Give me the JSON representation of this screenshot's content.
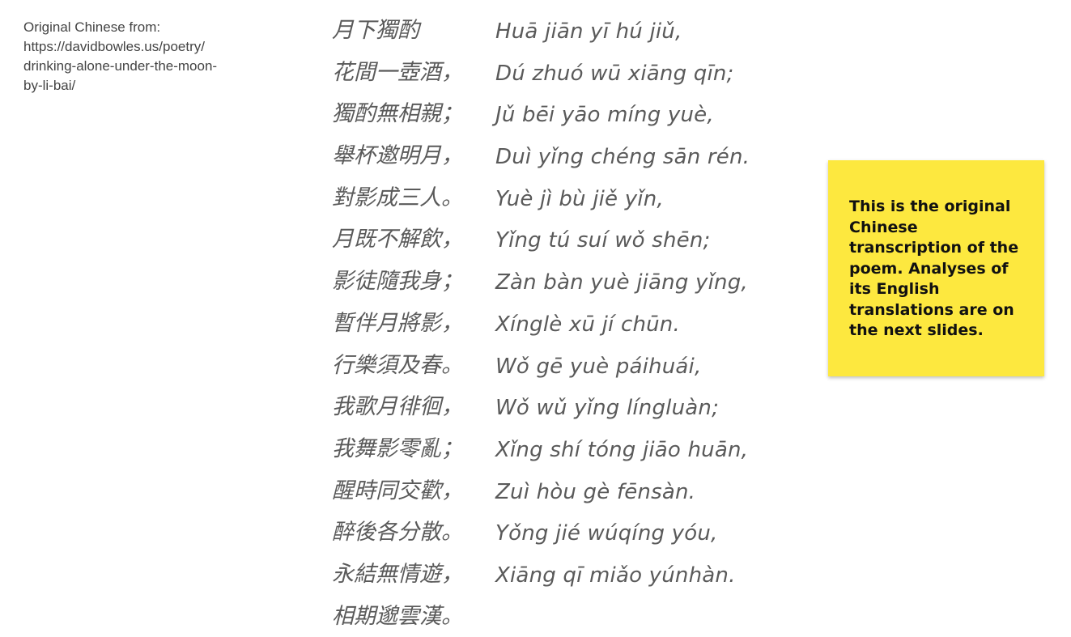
{
  "source_note": {
    "text": "Original Chinese from:\nhttps://davidbowles.us/poetry/\ndrinking-alone-under-the-moon-\nby-li-bai/"
  },
  "poem": {
    "chinese_lines": [
      "月下獨酌",
      "花間一壺酒，",
      "獨酌無相親；",
      "舉杯邀明月，",
      "對影成三人。",
      "月既不解飲，",
      "影徒隨我身；",
      "暫伴月將影，",
      "行樂須及春。",
      "我歌月徘徊，",
      "我舞影零亂；",
      "醒時同交歡，",
      "醉後各分散。",
      "永結無情遊，",
      "相期邈雲漢。"
    ],
    "pinyin_lines": [
      "Huā jiān yī hú jiǔ,",
      "Dú zhuó wū xiāng qīn;",
      "Jǔ bēi yāo míng yuè,",
      "Duì yǐng chéng sān rén.",
      "Yuè jì bù jiě yǐn,",
      "Yǐng tú suí wǒ shēn;",
      "Zàn bàn yuè jiāng yǐng,",
      "Xínglè xū jí chūn.",
      "Wǒ gē yuè páihuái,",
      "Wǒ wǔ yǐng língluàn;",
      "Xǐng shí tóng jiāo huān,",
      "Zuì hòu gè fēnsàn.",
      "Yǒng jié wúqíng yóu,",
      "Xiāng qī miǎo yúnhàn."
    ]
  },
  "sticky_note": {
    "text": "This is the original Chinese transcription of the poem. Analyses of its English translations are on the next slides.",
    "background_color": "#fde83f"
  }
}
